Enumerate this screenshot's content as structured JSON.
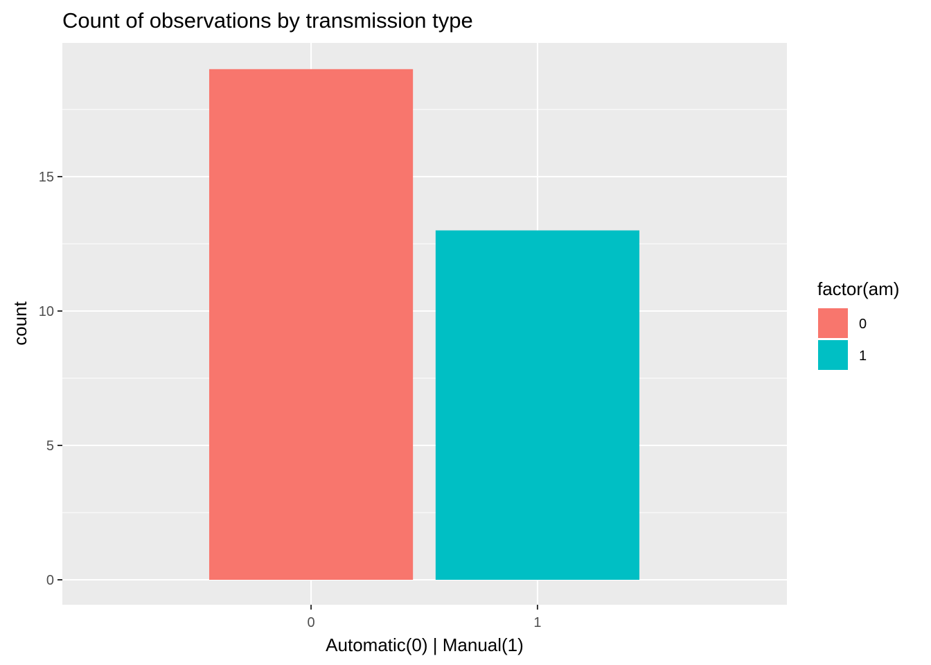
{
  "chart_data": {
    "type": "bar",
    "title": "Count of observations by transmission type",
    "xlabel": "Automatic(0) | Manual(1)",
    "ylabel": "count",
    "categories": [
      "0",
      "1"
    ],
    "values": [
      19,
      13
    ],
    "colors": [
      "#F8766D",
      "#00BFC4"
    ],
    "ylim": [
      0,
      19.95
    ],
    "yticks": [
      0,
      5,
      10,
      15
    ],
    "grid": true,
    "panel_background": "#EBEBEB",
    "grid_color": "#FFFFFF",
    "legend": {
      "title": "factor(am)",
      "placement": "right",
      "entries": [
        {
          "label": "0",
          "color": "#F8766D"
        },
        {
          "label": "1",
          "color": "#00BFC4"
        }
      ]
    }
  }
}
